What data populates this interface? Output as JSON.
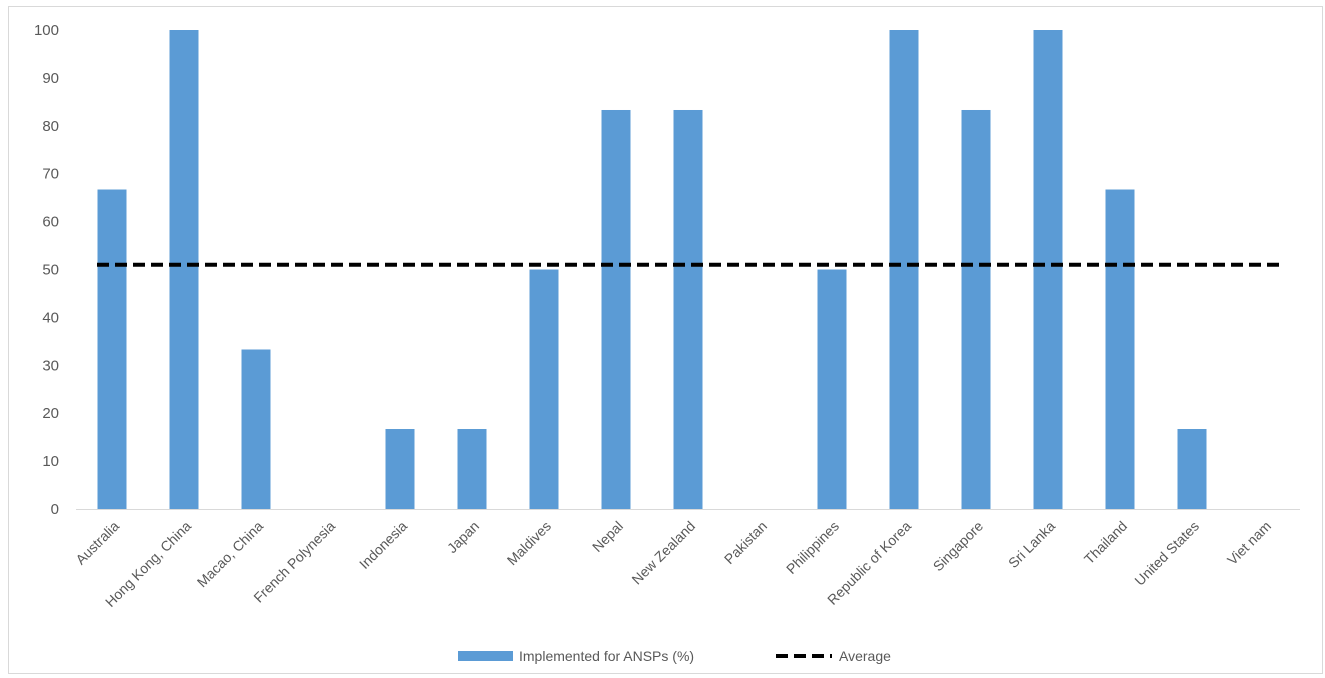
{
  "chart_data": {
    "type": "bar",
    "categories": [
      "Australia",
      "Hong Kong, China",
      "Macao, China",
      "French Polynesia",
      "Indonesia",
      "Japan",
      "Maldives",
      "Nepal",
      "New Zealand",
      "Pakistan",
      "Philippines",
      "Republic of Korea",
      "Singapore",
      "Sri Lanka",
      "Thailand",
      "United States",
      "Viet nam"
    ],
    "series": [
      {
        "name": "Implemented for ANSPs (%)",
        "kind": "bar",
        "color": "#5b9bd5",
        "values": [
          66.7,
          100,
          33.3,
          0,
          16.7,
          16.7,
          50,
          83.3,
          83.3,
          0,
          50,
          100,
          83.3,
          100,
          66.7,
          16.7,
          0
        ]
      },
      {
        "name": "Average",
        "kind": "line",
        "style": "dashed",
        "color": "#000000",
        "value": 51
      }
    ],
    "yticks": [
      0,
      10,
      20,
      30,
      40,
      50,
      60,
      70,
      80,
      90,
      100
    ],
    "ylim": [
      0,
      100
    ],
    "grid": false,
    "legend": "bottom-center"
  }
}
